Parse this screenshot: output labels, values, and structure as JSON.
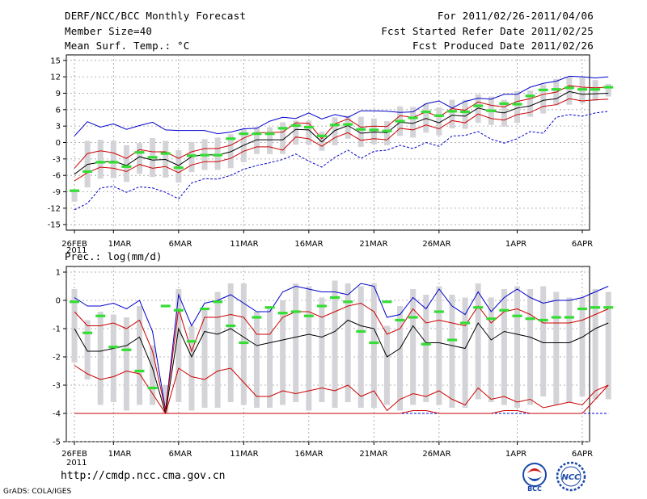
{
  "header": {
    "title": "DERF/NCC/BCC Monthly Forecast",
    "member_size": "Member Size=40",
    "variable": "Mean Surf. Temp.: °C",
    "period": "For 2011/02/26-2011/04/06",
    "start_date": "Fcst Started Refer Date 2011/02/25",
    "produced_date": "Fcst Produced Date 2011/02/26"
  },
  "footer": {
    "url": "http://cmdp.ncc.cma.gov.cn",
    "grads": "GrADS: COLA/IGES",
    "logo_left_text": "BCC",
    "logo_right_text": "NCC"
  },
  "colors": {
    "envelope": "#0000cc",
    "inner": "#cc0000",
    "median": "#000000",
    "box": "#d4d4d8",
    "obs": "#33dd33",
    "grid": "#9a9a9a"
  },
  "chart_data": [
    {
      "type": "line",
      "title": "Mean Surf. Temp.: °C",
      "x_tick_labels": [
        "26FEB",
        "1MAR",
        "6MAR",
        "11MAR",
        "16MAR",
        "21MAR",
        "26MAR",
        "1APR",
        "6APR"
      ],
      "x_tick_days": [
        0,
        3,
        8,
        13,
        18,
        23,
        28,
        34,
        39
      ],
      "x_sub_label": "2011",
      "ylim": [
        -16,
        16
      ],
      "yticks": [
        -15,
        -12,
        -9,
        -6,
        -3,
        0,
        3,
        6,
        9,
        12,
        15
      ],
      "series": [
        {
          "name": "max",
          "values": [
            1.2,
            3.8,
            2.8,
            3.4,
            2.4,
            3.1,
            3.7,
            2.3,
            2.2,
            2.2,
            2.2,
            1.6,
            1.9,
            2.5,
            2.6,
            3.9,
            4.6,
            4.4,
            5.4,
            4.3,
            5.1,
            4.6,
            5.8,
            5.8,
            5.7,
            5.5,
            5.6,
            7.1,
            7.6,
            6.3,
            7.5,
            8.1,
            7.9,
            8.8,
            8.8,
            10.1,
            10.8,
            11.2,
            12.1,
            12.0,
            11.8,
            12.0
          ]
        },
        {
          "name": "upper",
          "values": [
            -4.7,
            -2.0,
            -1.5,
            -1.9,
            -2.9,
            -1.3,
            -1.7,
            -1.7,
            -2.9,
            -1.7,
            -1.1,
            -1.1,
            -0.5,
            0.8,
            1.8,
            1.8,
            1.9,
            3.6,
            3.5,
            0.7,
            3.4,
            4.3,
            2.8,
            3.0,
            2.9,
            4.9,
            4.6,
            5.6,
            4.7,
            6.2,
            5.9,
            7.4,
            6.8,
            6.5,
            7.5,
            8.0,
            8.8,
            9.2,
            10.4,
            10.1,
            10.0,
            10.1
          ]
        },
        {
          "name": "median",
          "values": [
            -5.8,
            -4.0,
            -3.6,
            -3.4,
            -4.2,
            -2.6,
            -3.2,
            -3.1,
            -4.2,
            -2.6,
            -2.2,
            -2.3,
            -1.7,
            -0.5,
            0.5,
            0.5,
            0.5,
            2.4,
            2.3,
            0.1,
            2.2,
            3.1,
            1.7,
            1.9,
            1.8,
            3.7,
            3.5,
            4.4,
            3.6,
            5.0,
            4.8,
            6.3,
            5.7,
            5.4,
            6.3,
            6.7,
            7.7,
            8.0,
            9.3,
            8.8,
            8.9,
            9.0
          ]
        },
        {
          "name": "lower",
          "values": [
            -7.0,
            -5.5,
            -4.5,
            -4.7,
            -5.3,
            -4.0,
            -4.7,
            -4.4,
            -5.5,
            -4.1,
            -3.5,
            -3.5,
            -2.9,
            -1.6,
            -0.8,
            -0.8,
            -1.4,
            1.0,
            0.7,
            -0.7,
            0.9,
            1.8,
            0.4,
            0.7,
            0.5,
            2.6,
            2.3,
            3.2,
            2.5,
            4.0,
            3.6,
            5.2,
            4.4,
            4.1,
            5.1,
            5.5,
            6.6,
            6.9,
            8.0,
            7.6,
            7.8,
            7.9
          ]
        },
        {
          "name": "min",
          "values": [
            -12.3,
            -11.1,
            -8.3,
            -8.0,
            -9.1,
            -8.1,
            -8.3,
            -9.1,
            -10.3,
            -7.4,
            -6.6,
            -6.7,
            -6.0,
            -4.9,
            -4.2,
            -3.7,
            -3.1,
            -2.1,
            -3.4,
            -4.5,
            -2.7,
            -1.4,
            -2.9,
            -1.6,
            -1.4,
            -0.5,
            -1.1,
            0.0,
            -0.7,
            1.2,
            1.3,
            2.0,
            0.6,
            -0.1,
            0.7,
            2.0,
            1.7,
            4.6,
            5.1,
            4.8,
            5.4,
            5.7
          ]
        },
        {
          "name": "observed",
          "values": [
            -8.8,
            -5.3,
            -3.6,
            -3.6,
            -4.4,
            -1.8,
            -2.7,
            -2.0,
            -4.6,
            -2.4,
            -2.3,
            -2.3,
            0.7,
            1.6,
            1.6,
            1.6,
            2.6,
            3.1,
            2.8,
            1.2,
            3.2,
            3.3,
            2.4,
            2.3,
            2.1,
            3.9,
            4.5,
            5.6,
            4.9,
            5.7,
            5.6,
            6.7,
            5.8,
            7.1,
            7.0,
            8.5,
            9.6,
            9.7,
            10.0,
            9.7,
            9.7,
            10.1
          ]
        }
      ],
      "boxes_p25_p75": {
        "low": [
          -10.8,
          -8.2,
          -6.6,
          -6.5,
          -7.2,
          -5.7,
          -6.3,
          -6.4,
          -7.3,
          -5.4,
          -5.0,
          -5.0,
          -4.7,
          -3.6,
          -2.1,
          -2.1,
          -2.1,
          -0.4,
          -0.4,
          -1.5,
          -0.5,
          0.7,
          -0.8,
          -0.3,
          -0.5,
          1.2,
          0.9,
          1.8,
          1.3,
          2.6,
          2.5,
          3.6,
          3.2,
          2.9,
          3.6,
          4.7,
          5.3,
          6.8,
          6.9,
          7.2,
          7.6,
          8.4
        ],
        "high": [
          -8.6,
          0.3,
          0.5,
          0.3,
          -0.5,
          -0.1,
          0.8,
          0.3,
          -1.4,
          0.1,
          0.6,
          0.9,
          1.5,
          2.5,
          2.8,
          2.8,
          3.7,
          4.0,
          4.0,
          2.0,
          4.6,
          4.9,
          4.7,
          4.4,
          3.9,
          6.6,
          6.5,
          7.1,
          6.4,
          7.8,
          7.8,
          8.8,
          8.4,
          7.8,
          9.4,
          9.5,
          10.6,
          11.6,
          12.0,
          11.9,
          11.4,
          10.7
        ]
      }
    },
    {
      "type": "line",
      "title": "Prec.: log(mm/d)",
      "x_tick_labels": [
        "26FEB",
        "1MAR",
        "6MAR",
        "11MAR",
        "16MAR",
        "21MAR",
        "26MAR",
        "1APR",
        "6APR"
      ],
      "x_tick_days": [
        0,
        3,
        8,
        13,
        18,
        23,
        28,
        34,
        39
      ],
      "x_sub_label": "2011",
      "ylim": [
        -5,
        1.2
      ],
      "yticks": [
        -5,
        -4,
        -3,
        -2,
        -1,
        0,
        1
      ],
      "series": [
        {
          "name": "max",
          "values": [
            0.1,
            -0.2,
            -0.2,
            -0.1,
            -0.3,
            0.0,
            -1.1,
            -3.9,
            0.2,
            -0.9,
            -0.1,
            0.0,
            0.2,
            -0.1,
            -0.4,
            -0.4,
            0.3,
            0.5,
            0.4,
            0.3,
            0.3,
            0.2,
            0.6,
            0.5,
            -0.6,
            -0.5,
            0.1,
            -0.3,
            0.4,
            -0.2,
            -0.5,
            0.3,
            -0.4,
            0.1,
            0.4,
            0.1,
            -0.1,
            0.0,
            0.0,
            0.1,
            0.3,
            0.5
          ]
        },
        {
          "name": "upper",
          "values": [
            -0.4,
            -0.9,
            -0.9,
            -0.8,
            -1.0,
            -0.7,
            -1.8,
            -3.9,
            -0.3,
            -1.8,
            -0.6,
            -0.6,
            -0.5,
            -0.6,
            -1.2,
            -1.2,
            -0.6,
            -0.4,
            -0.4,
            -0.6,
            -0.4,
            -0.2,
            -0.1,
            -0.4,
            -1.2,
            -1.0,
            -0.3,
            -0.8,
            -0.7,
            -0.8,
            -0.9,
            -0.2,
            -0.8,
            -0.4,
            -0.3,
            -0.5,
            -0.8,
            -0.8,
            -0.8,
            -0.7,
            -0.5,
            -0.3
          ]
        },
        {
          "name": "median",
          "values": [
            -1.0,
            -1.8,
            -1.8,
            -1.7,
            -1.6,
            -1.3,
            -2.4,
            -4.0,
            -1.0,
            -2.0,
            -1.1,
            -1.2,
            -1.0,
            -1.3,
            -1.6,
            -1.5,
            -1.4,
            -1.3,
            -1.2,
            -1.3,
            -1.1,
            -0.7,
            -0.9,
            -1.0,
            -2.0,
            -1.7,
            -0.9,
            -1.5,
            -1.5,
            -1.6,
            -1.7,
            -0.8,
            -1.4,
            -1.1,
            -1.2,
            -1.3,
            -1.5,
            -1.5,
            -1.5,
            -1.3,
            -1.0,
            -0.8
          ]
        },
        {
          "name": "lower",
          "values": [
            -2.3,
            -2.6,
            -2.8,
            -2.7,
            -2.5,
            -2.6,
            -3.3,
            -4.0,
            -2.4,
            -2.7,
            -2.8,
            -2.5,
            -2.4,
            -2.9,
            -3.4,
            -3.4,
            -3.2,
            -3.3,
            -3.2,
            -3.1,
            -3.2,
            -3.0,
            -3.4,
            -3.2,
            -3.9,
            -3.5,
            -3.3,
            -3.4,
            -3.2,
            -3.5,
            -3.7,
            -3.1,
            -3.5,
            -3.4,
            -3.6,
            -3.5,
            -3.8,
            -3.7,
            -3.6,
            -3.7,
            -3.2,
            -3.0
          ]
        },
        {
          "name": "min",
          "values": [
            -4.0,
            -4.0,
            -4.0,
            -4.0,
            -4.0,
            -4.0,
            -4.0,
            -4.0,
            -4.0,
            -4.0,
            -4.0,
            -4.0,
            -4.0,
            -4.0,
            -4.0,
            -4.0,
            -4.0,
            -4.0,
            -4.0,
            -4.0,
            -4.0,
            -4.0,
            -4.0,
            -4.0,
            -4.0,
            -4.0,
            -4.0,
            -4.0,
            -4.0,
            -4.0,
            -4.0,
            -4.0,
            -4.0,
            -4.0,
            -4.0,
            -4.0,
            -4.0,
            -4.0,
            -4.0,
            -4.0,
            -4.0,
            -4.0
          ]
        },
        {
          "name": "observed",
          "values": [
            -0.05,
            -1.15,
            -0.55,
            -1.65,
            -1.75,
            -2.5,
            -3.1,
            -0.2,
            -0.35,
            -1.45,
            -0.3,
            -0.05,
            -0.9,
            -1.5,
            -0.6,
            -0.25,
            -0.45,
            -0.4,
            -0.55,
            -0.2,
            0.1,
            -0.05,
            -1.1,
            -1.5,
            -0.05,
            -0.7,
            -0.6,
            -1.55,
            -0.4,
            -1.4,
            -0.8,
            -0.25,
            -0.65,
            -0.35,
            -0.55,
            -0.65,
            -0.7,
            -0.6,
            -0.6,
            -0.3,
            -0.25,
            -0.25
          ]
        },
        {
          "name": "min_lower_red",
          "values": [
            -4.0,
            -4.0,
            -4.0,
            -4.0,
            -4.0,
            -4.0,
            -4.0,
            -4.0,
            -4.0,
            -4.0,
            -4.0,
            -4.0,
            -4.0,
            -4.0,
            -4.0,
            -4.0,
            -4.0,
            -4.0,
            -4.0,
            -4.0,
            -4.0,
            -4.0,
            -4.0,
            -4.0,
            -4.0,
            -4.0,
            -3.9,
            -3.9,
            -4.0,
            -4.0,
            -4.0,
            -4.0,
            -4.0,
            -3.9,
            -3.9,
            -4.0,
            -4.0,
            -4.0,
            -4.0,
            -4.0,
            -3.5,
            -3.0
          ]
        }
      ],
      "boxes_p25_p75": {
        "low": [
          -2.2,
          -2.8,
          -3.7,
          -3.6,
          -3.9,
          -3.7,
          -3.7,
          -4.0,
          -3.6,
          -3.9,
          -3.8,
          -3.8,
          -3.6,
          -3.7,
          -3.8,
          -3.8,
          -3.7,
          -3.6,
          -3.9,
          -3.6,
          -3.8,
          -3.6,
          -3.8,
          -3.8,
          -3.7,
          -3.9,
          -3.7,
          -3.6,
          -3.7,
          -3.8,
          -3.8,
          -3.5,
          -3.6,
          -3.7,
          -3.8,
          -3.7,
          -3.4,
          -3.7,
          -3.6,
          -3.4,
          -3.5,
          -3.5
        ],
        "high": [
          0.4,
          -0.7,
          -0.4,
          -0.5,
          -0.6,
          -0.2,
          -1.6,
          -3.0,
          0.4,
          -0.9,
          -0.3,
          0.3,
          0.6,
          0.6,
          -0.4,
          -0.3,
          0.0,
          0.6,
          0.5,
          0.1,
          0.7,
          0.6,
          0.5,
          0.6,
          -0.9,
          -0.2,
          0.4,
          0.2,
          0.5,
          0.2,
          0.1,
          0.6,
          0.1,
          0.4,
          0.5,
          0.4,
          0.5,
          0.3,
          0.1,
          0.1,
          0.4,
          0.3
        ]
      }
    }
  ]
}
